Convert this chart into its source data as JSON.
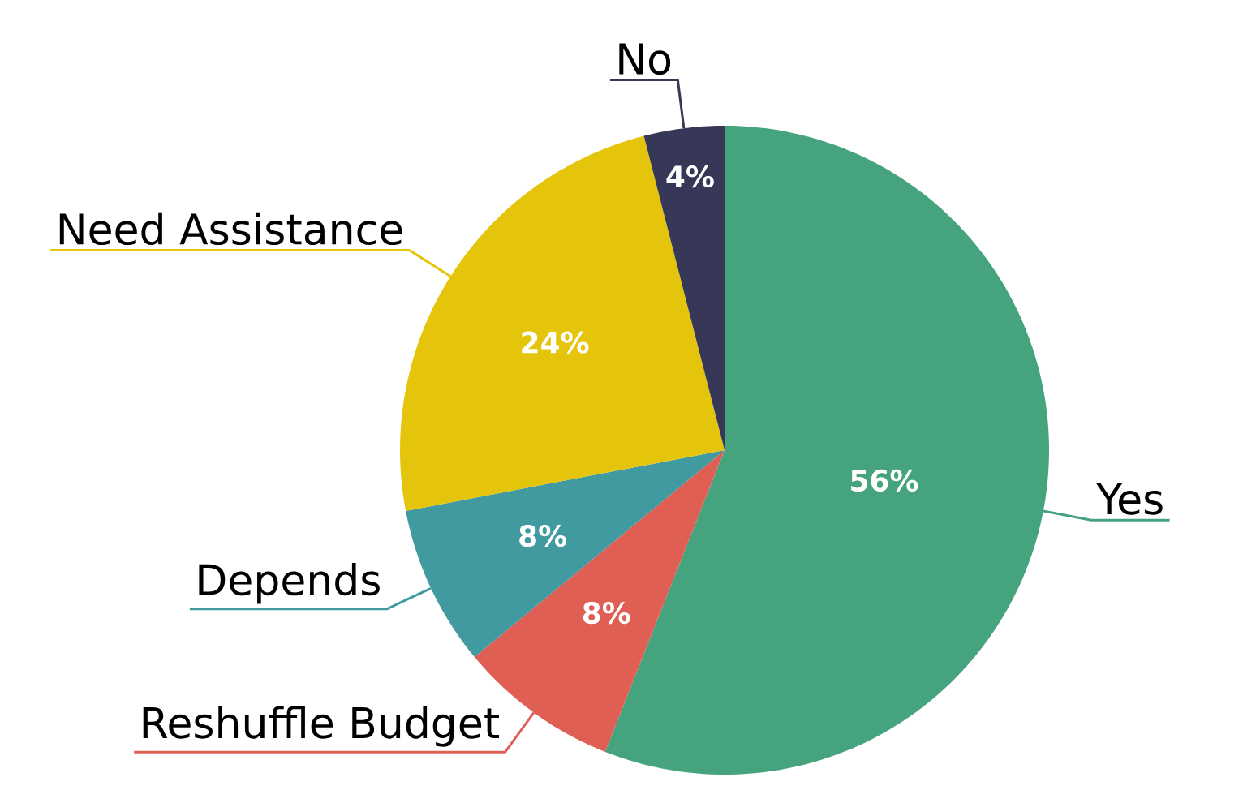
{
  "chart_data": {
    "type": "pie",
    "categories": [
      "Yes",
      "Reshuffle Budget",
      "Depends",
      "Need Assistance",
      "No"
    ],
    "values": [
      56,
      8,
      8,
      24,
      4
    ],
    "colors": [
      "#45a37e",
      "#e05f55",
      "#409aa0",
      "#e5c40c",
      "#373758"
    ],
    "value_labels": [
      "56%",
      "8%",
      "8%",
      "24%",
      "4%"
    ]
  }
}
